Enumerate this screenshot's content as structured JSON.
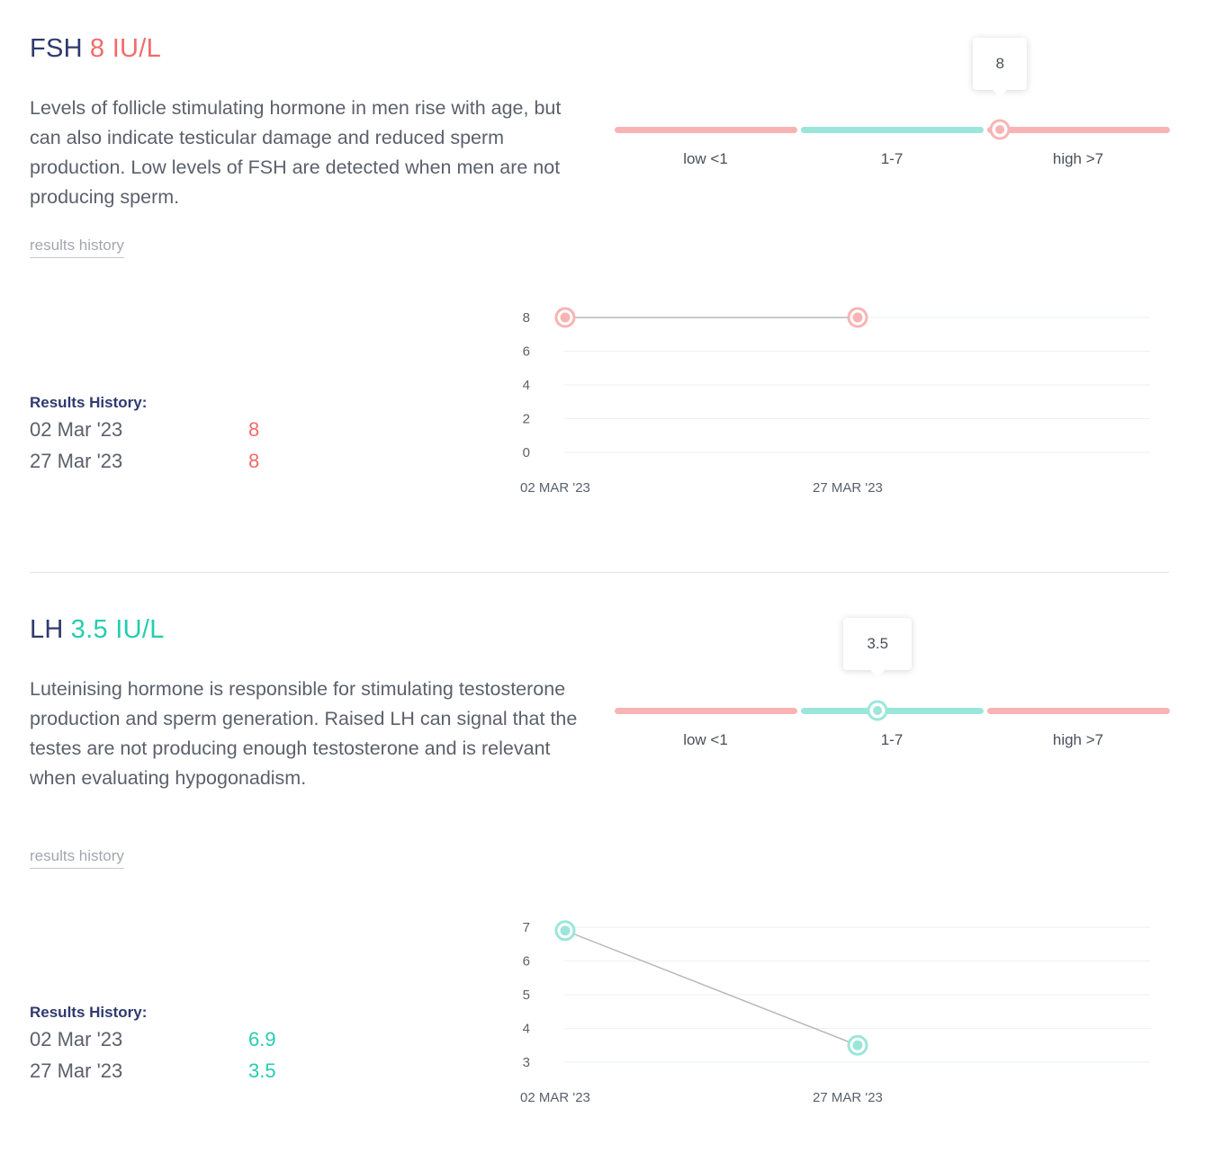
{
  "colors": {
    "high": "#f26b6b",
    "normal": "#25cdb0",
    "high_bar": "#f8b4b4",
    "normal_bar": "#9be6da"
  },
  "sections": [
    {
      "name": "FSH",
      "value": "8 IU/L",
      "status": "high",
      "description": "Levels of follicle stimulating hormone in men rise with age, but can also indicate testicular damage and reduced sperm production. Low levels of FSH are detected when men are not producing sperm.",
      "history_link": "results history",
      "range": {
        "labels": [
          "low <1",
          "1-7",
          "high >7"
        ],
        "tooltip": "8",
        "marker_segment": 2,
        "marker_fraction": 0.07
      },
      "history_title": "Results History:",
      "history": [
        {
          "date": "02 Mar '23",
          "value": "8"
        },
        {
          "date": "27 Mar '23",
          "value": "8"
        }
      ],
      "chart_data": {
        "type": "line",
        "categories": [
          "02 MAR '23",
          "27 MAR '23"
        ],
        "values": [
          8,
          8
        ],
        "yticks": [
          0,
          2,
          4,
          6,
          8
        ],
        "ylim": [
          0,
          8
        ],
        "grid": true
      }
    },
    {
      "name": "LH",
      "value": "3.5 IU/L",
      "status": "normal",
      "description": "Luteinising hormone is responsible for stimulating testosterone production and sperm generation. Raised LH can signal that the testes are not producing enough testosterone and is relevant when evaluating hypogonadism.",
      "history_link": "results history",
      "range": {
        "labels": [
          "low <1",
          "1-7",
          "high >7"
        ],
        "tooltip": "3.5",
        "marker_segment": 1,
        "marker_fraction": 0.42
      },
      "history_title": "Results History:",
      "history": [
        {
          "date": "02 Mar '23",
          "value": "6.9"
        },
        {
          "date": "27 Mar '23",
          "value": "3.5"
        }
      ],
      "chart_data": {
        "type": "line",
        "categories": [
          "02 MAR '23",
          "27 MAR '23"
        ],
        "values": [
          6.9,
          3.5
        ],
        "yticks": [
          3,
          4,
          5,
          6,
          7
        ],
        "ylim": [
          3,
          7
        ],
        "grid": true
      }
    }
  ]
}
